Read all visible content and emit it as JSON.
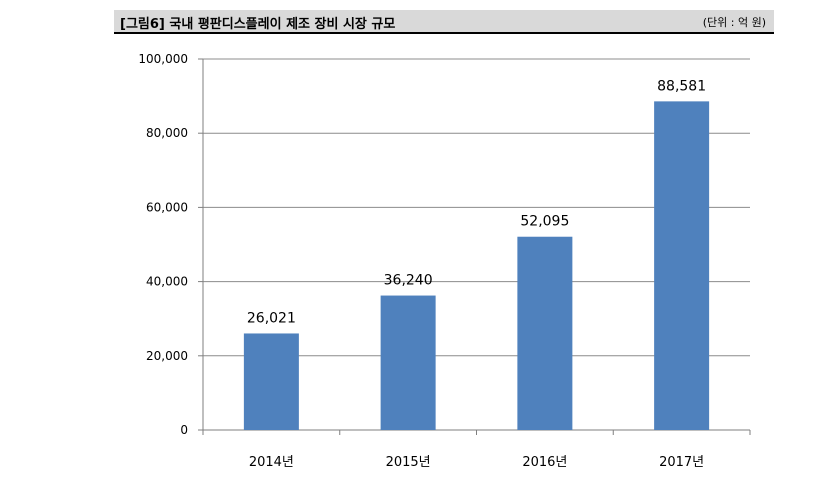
{
  "header": {
    "title": "[그림6] 국내 평판디스플레이 제조 장비 시장 규모",
    "unit": "(단위 : 억 원)"
  },
  "chart_data": {
    "type": "bar",
    "title": "[그림6] 국내 평판디스플레이 제조 장비 시장 규모",
    "xlabel": "",
    "ylabel": "",
    "categories": [
      "2014년",
      "2015년",
      "2016년",
      "2017년"
    ],
    "values": [
      26021,
      36240,
      52095,
      88581
    ],
    "data_labels": [
      "26,021",
      "36,240",
      "52,095",
      "88,581"
    ],
    "ylim": [
      0,
      100000
    ],
    "yticks": [
      0,
      20000,
      40000,
      60000,
      80000,
      100000
    ],
    "ytick_labels": [
      "0",
      "20,000",
      "40,000",
      "60,000",
      "80,000",
      "100,000"
    ],
    "grid": true,
    "legend": "none",
    "colors": {
      "bar": "#4f81bd",
      "grid": "#8c8c8c",
      "axis": "#7f7f7f"
    }
  }
}
